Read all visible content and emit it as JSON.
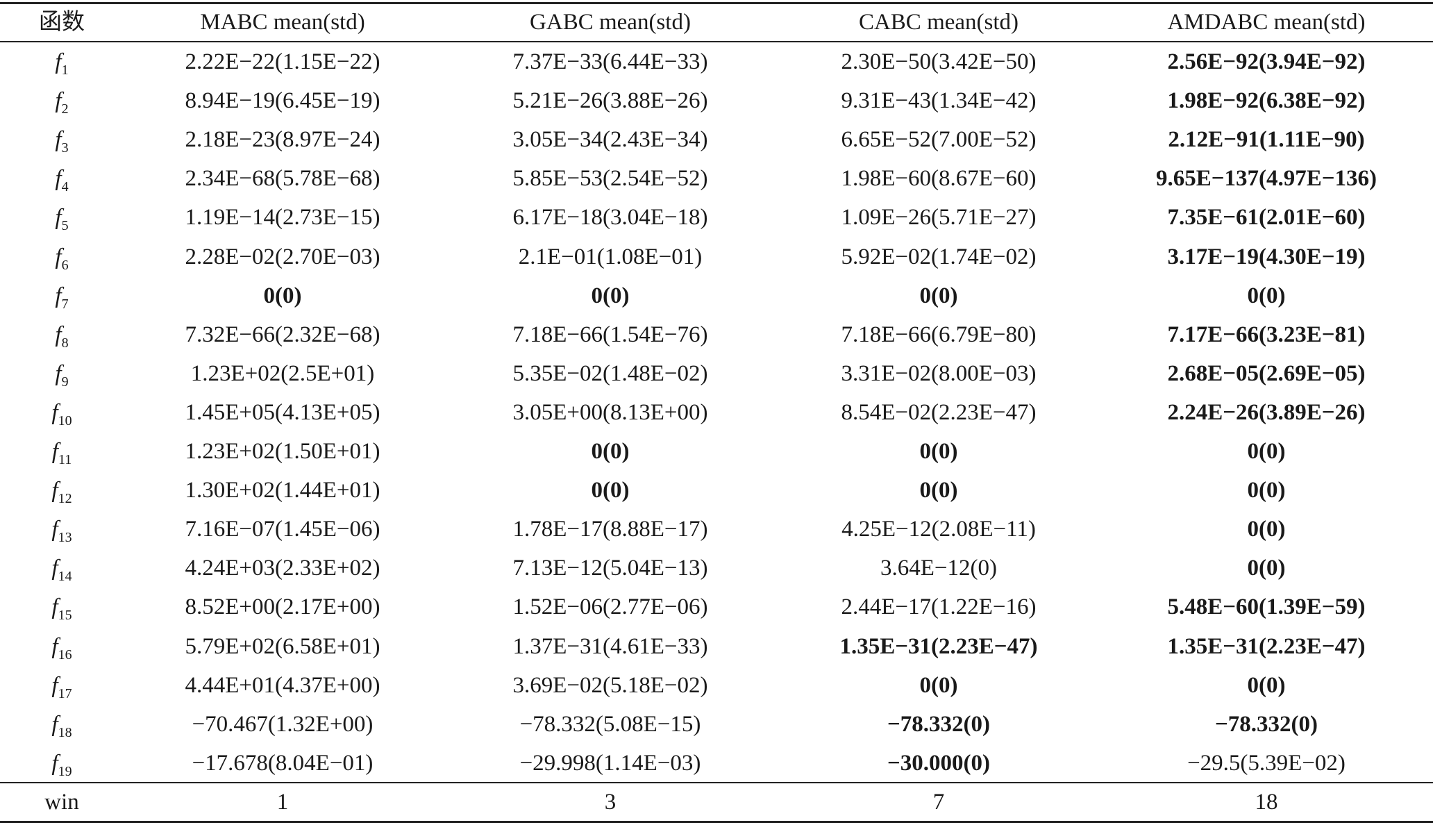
{
  "table": {
    "header": [
      "函数",
      "MABC mean(std)",
      "GABC mean(std)",
      "CABC mean(std)",
      "AMDABC mean(std)"
    ],
    "rows": [
      {
        "label": [
          "f",
          "1"
        ],
        "cells": [
          "2.22E−22(1.15E−22)",
          "7.37E−33(6.44E−33)",
          "2.30E−50(3.42E−50)",
          "2.56E−92(3.94E−92)"
        ],
        "bold": [
          3
        ]
      },
      {
        "label": [
          "f",
          "2"
        ],
        "cells": [
          "8.94E−19(6.45E−19)",
          "5.21E−26(3.88E−26)",
          "9.31E−43(1.34E−42)",
          "1.98E−92(6.38E−92)"
        ],
        "bold": [
          3
        ]
      },
      {
        "label": [
          "f",
          "3"
        ],
        "cells": [
          "2.18E−23(8.97E−24)",
          "3.05E−34(2.43E−34)",
          "6.65E−52(7.00E−52)",
          "2.12E−91(1.11E−90)"
        ],
        "bold": [
          3
        ]
      },
      {
        "label": [
          "f",
          "4"
        ],
        "cells": [
          "2.34E−68(5.78E−68)",
          "5.85E−53(2.54E−52)",
          "1.98E−60(8.67E−60)",
          "9.65E−137(4.97E−136)"
        ],
        "bold": [
          3
        ]
      },
      {
        "label": [
          "f",
          "5"
        ],
        "cells": [
          "1.19E−14(2.73E−15)",
          "6.17E−18(3.04E−18)",
          "1.09E−26(5.71E−27)",
          "7.35E−61(2.01E−60)"
        ],
        "bold": [
          3
        ]
      },
      {
        "label": [
          "f",
          "6"
        ],
        "cells": [
          "2.28E−02(2.70E−03)",
          "2.1E−01(1.08E−01)",
          "5.92E−02(1.74E−02)",
          "3.17E−19(4.30E−19)"
        ],
        "bold": [
          3
        ]
      },
      {
        "label": [
          "f",
          "7"
        ],
        "cells": [
          "0(0)",
          "0(0)",
          "0(0)",
          "0(0)"
        ],
        "bold": [
          0,
          1,
          2,
          3
        ]
      },
      {
        "label": [
          "f",
          "8"
        ],
        "cells": [
          "7.32E−66(2.32E−68)",
          "7.18E−66(1.54E−76)",
          "7.18E−66(6.79E−80)",
          "7.17E−66(3.23E−81)"
        ],
        "bold": [
          3
        ]
      },
      {
        "label": [
          "f",
          "9"
        ],
        "cells": [
          "1.23E+02(2.5E+01)",
          "5.35E−02(1.48E−02)",
          "3.31E−02(8.00E−03)",
          "2.68E−05(2.69E−05)"
        ],
        "bold": [
          3
        ]
      },
      {
        "label": [
          "f",
          "10"
        ],
        "cells": [
          "1.45E+05(4.13E+05)",
          "3.05E+00(8.13E+00)",
          "8.54E−02(2.23E−47)",
          "2.24E−26(3.89E−26)"
        ],
        "bold": [
          3
        ]
      },
      {
        "label": [
          "f",
          "11"
        ],
        "cells": [
          "1.23E+02(1.50E+01)",
          "0(0)",
          "0(0)",
          "0(0)"
        ],
        "bold": [
          1,
          2,
          3
        ]
      },
      {
        "label": [
          "f",
          "12"
        ],
        "cells": [
          "1.30E+02(1.44E+01)",
          "0(0)",
          "0(0)",
          "0(0)"
        ],
        "bold": [
          1,
          2,
          3
        ]
      },
      {
        "label": [
          "f",
          "13"
        ],
        "cells": [
          "7.16E−07(1.45E−06)",
          "1.78E−17(8.88E−17)",
          "4.25E−12(2.08E−11)",
          "0(0)"
        ],
        "bold": [
          3
        ]
      },
      {
        "label": [
          "f",
          "14"
        ],
        "cells": [
          "4.24E+03(2.33E+02)",
          "7.13E−12(5.04E−13)",
          "3.64E−12(0)",
          "0(0)"
        ],
        "bold": [
          3
        ]
      },
      {
        "label": [
          "f",
          "15"
        ],
        "cells": [
          "8.52E+00(2.17E+00)",
          "1.52E−06(2.77E−06)",
          "2.44E−17(1.22E−16)",
          "5.48E−60(1.39E−59)"
        ],
        "bold": [
          3
        ]
      },
      {
        "label": [
          "f",
          "16"
        ],
        "cells": [
          "5.79E+02(6.58E+01)",
          "1.37E−31(4.61E−33)",
          "1.35E−31(2.23E−47)",
          "1.35E−31(2.23E−47)"
        ],
        "bold": [
          2,
          3
        ]
      },
      {
        "label": [
          "f",
          "17"
        ],
        "cells": [
          "4.44E+01(4.37E+00)",
          "3.69E−02(5.18E−02)",
          "0(0)",
          "0(0)"
        ],
        "bold": [
          2,
          3
        ]
      },
      {
        "label": [
          "f",
          "18"
        ],
        "cells": [
          "−70.467(1.32E+00)",
          "−78.332(5.08E−15)",
          "−78.332(0)",
          "−78.332(0)"
        ],
        "bold": [
          2,
          3
        ]
      },
      {
        "label": [
          "f",
          "19"
        ],
        "cells": [
          "−17.678(8.04E−01)",
          "−29.998(1.14E−03)",
          "−30.000(0)",
          "−29.5(5.39E−02)"
        ],
        "bold": [
          2
        ]
      }
    ],
    "footer": [
      "win",
      "1",
      "3",
      "7",
      "18"
    ]
  }
}
